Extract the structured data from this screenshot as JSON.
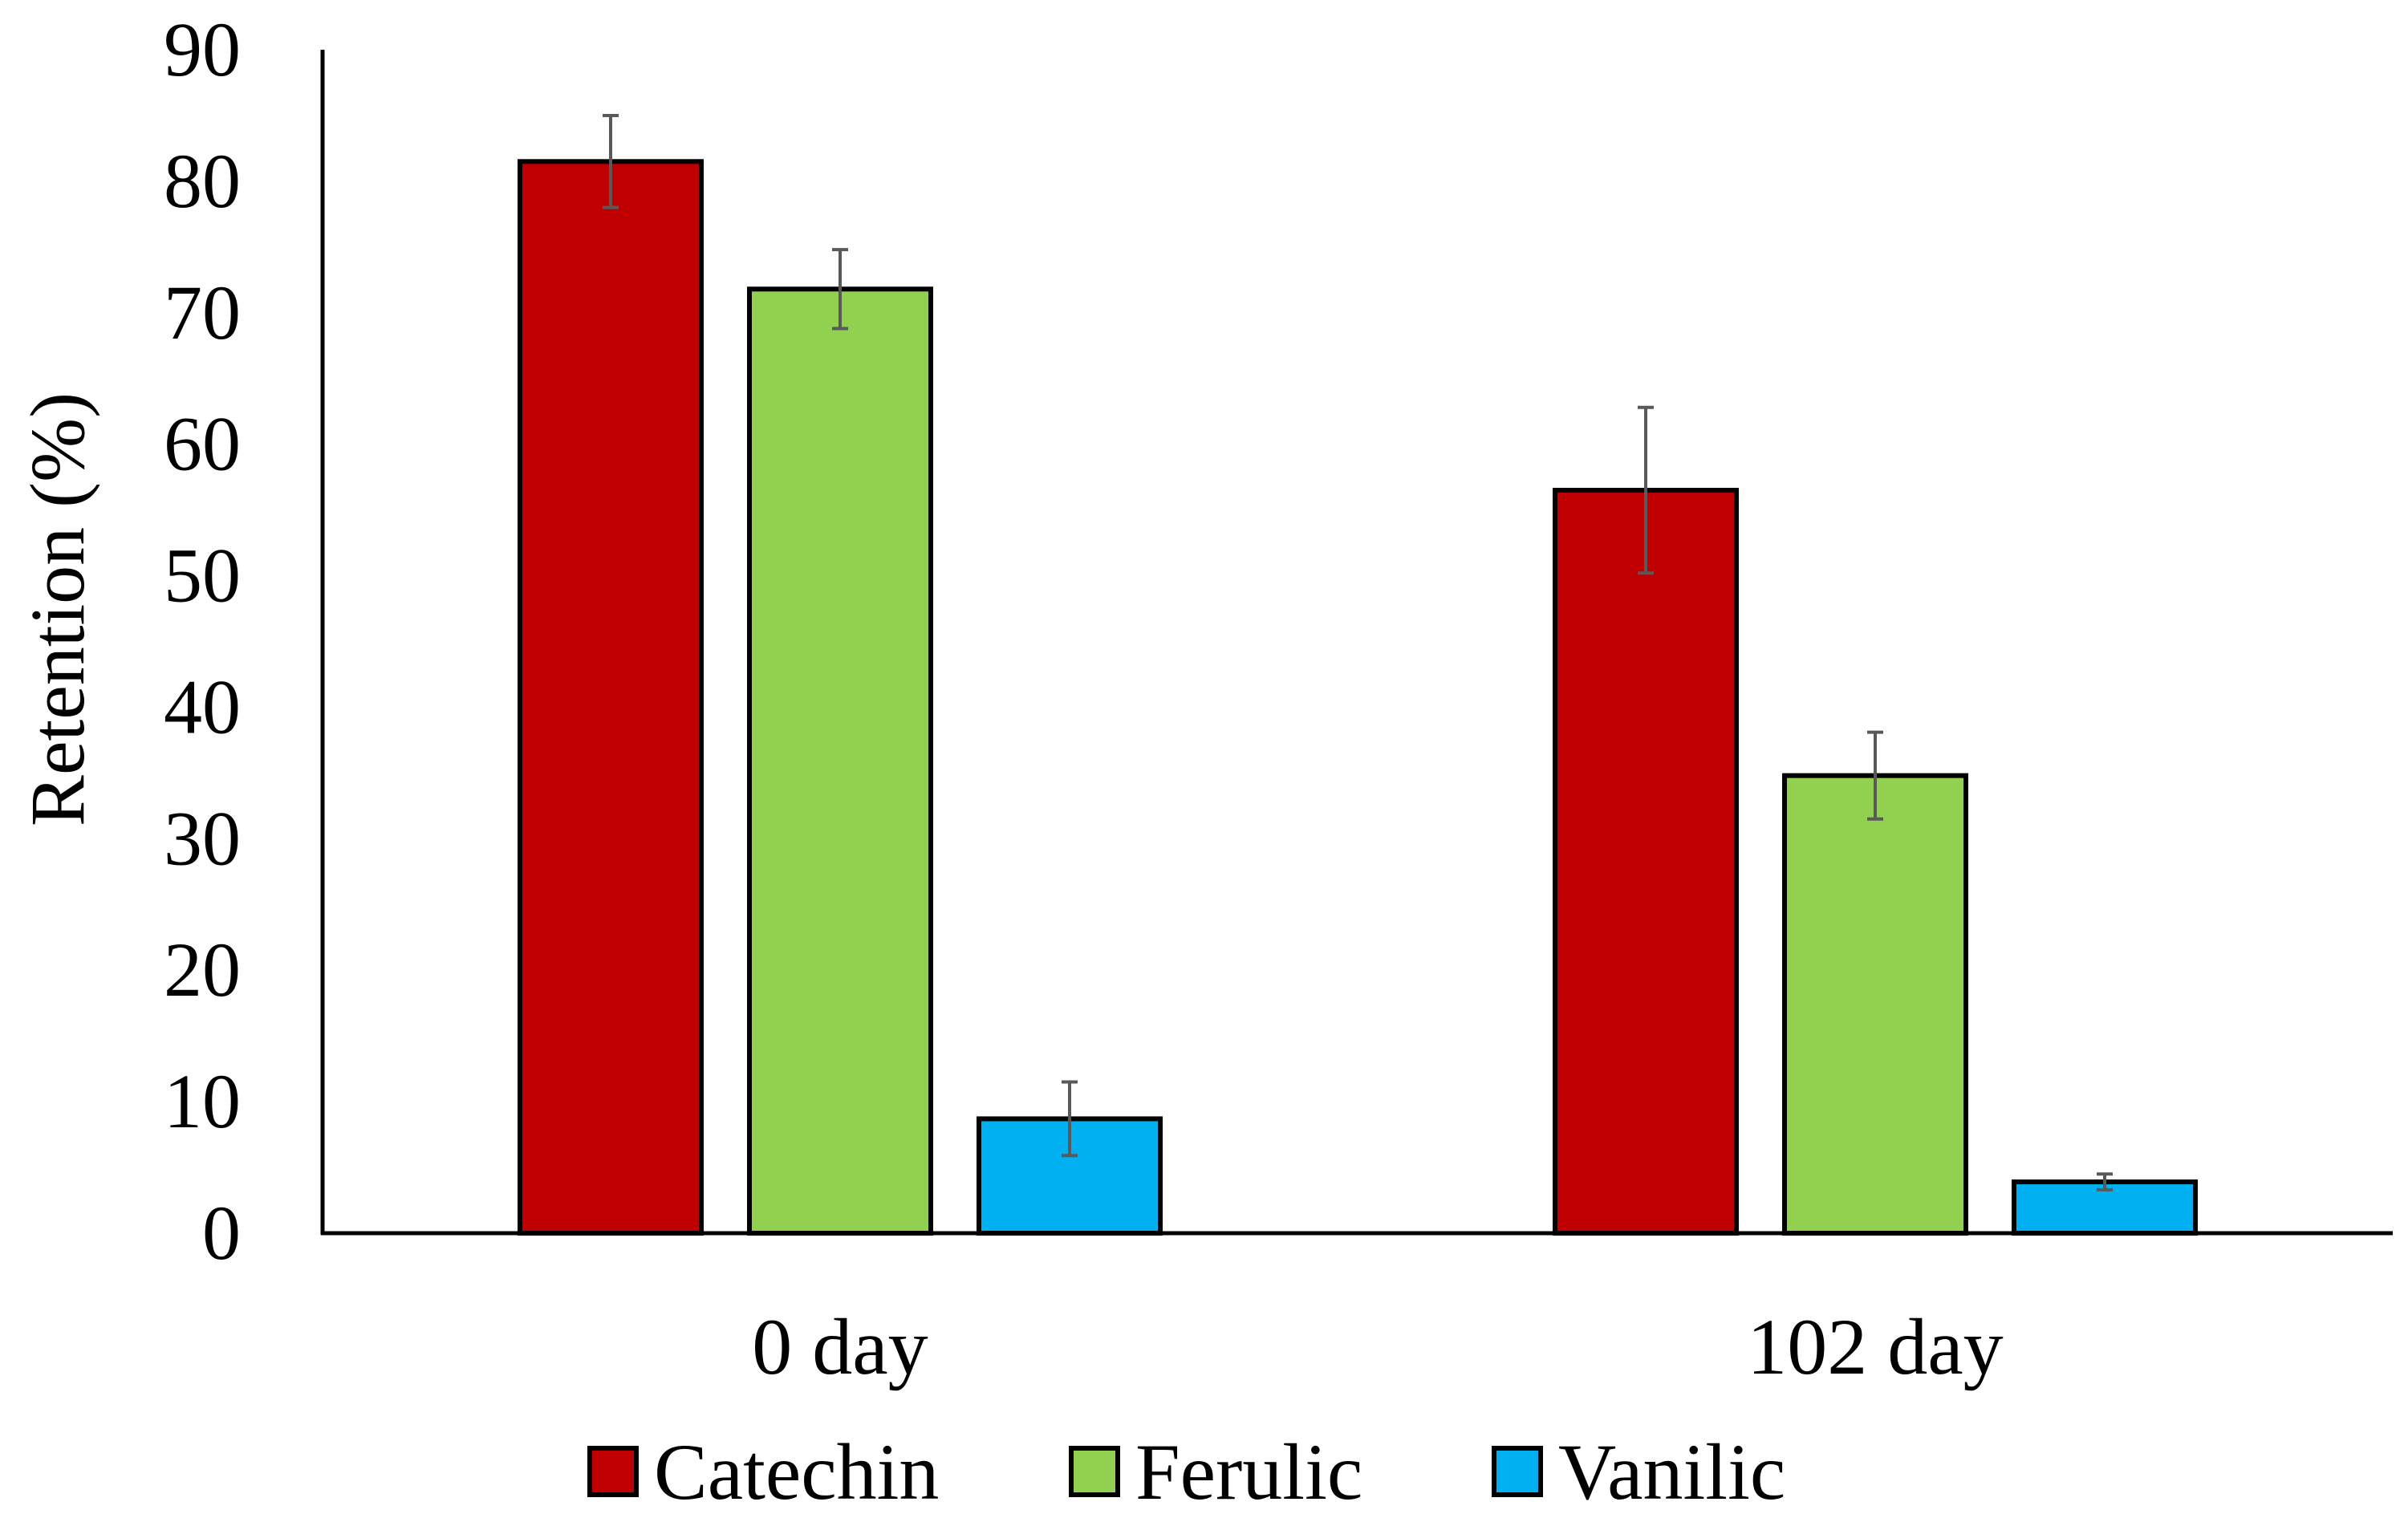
{
  "chart_data": {
    "type": "bar",
    "title": "",
    "xlabel": "",
    "ylabel": "Retention (%)",
    "ylim": [
      0,
      90
    ],
    "yticks": [
      0,
      10,
      20,
      30,
      40,
      50,
      60,
      70,
      80,
      90
    ],
    "grid": false,
    "legend_position": "bottom",
    "categories": [
      "0 day",
      "102 day"
    ],
    "series": [
      {
        "name": "Catechin",
        "color": "#C00000",
        "values": [
          81.5,
          56.5
        ],
        "errors": [
          3.5,
          6.3
        ]
      },
      {
        "name": "Ferulic",
        "color": "#92D050",
        "values": [
          71.8,
          34.8
        ],
        "errors": [
          3.0,
          3.3
        ]
      },
      {
        "name": "Vanilic",
        "color": "#00B0F0",
        "values": [
          8.7,
          3.9
        ],
        "errors": [
          2.8,
          0.6
        ]
      }
    ]
  }
}
